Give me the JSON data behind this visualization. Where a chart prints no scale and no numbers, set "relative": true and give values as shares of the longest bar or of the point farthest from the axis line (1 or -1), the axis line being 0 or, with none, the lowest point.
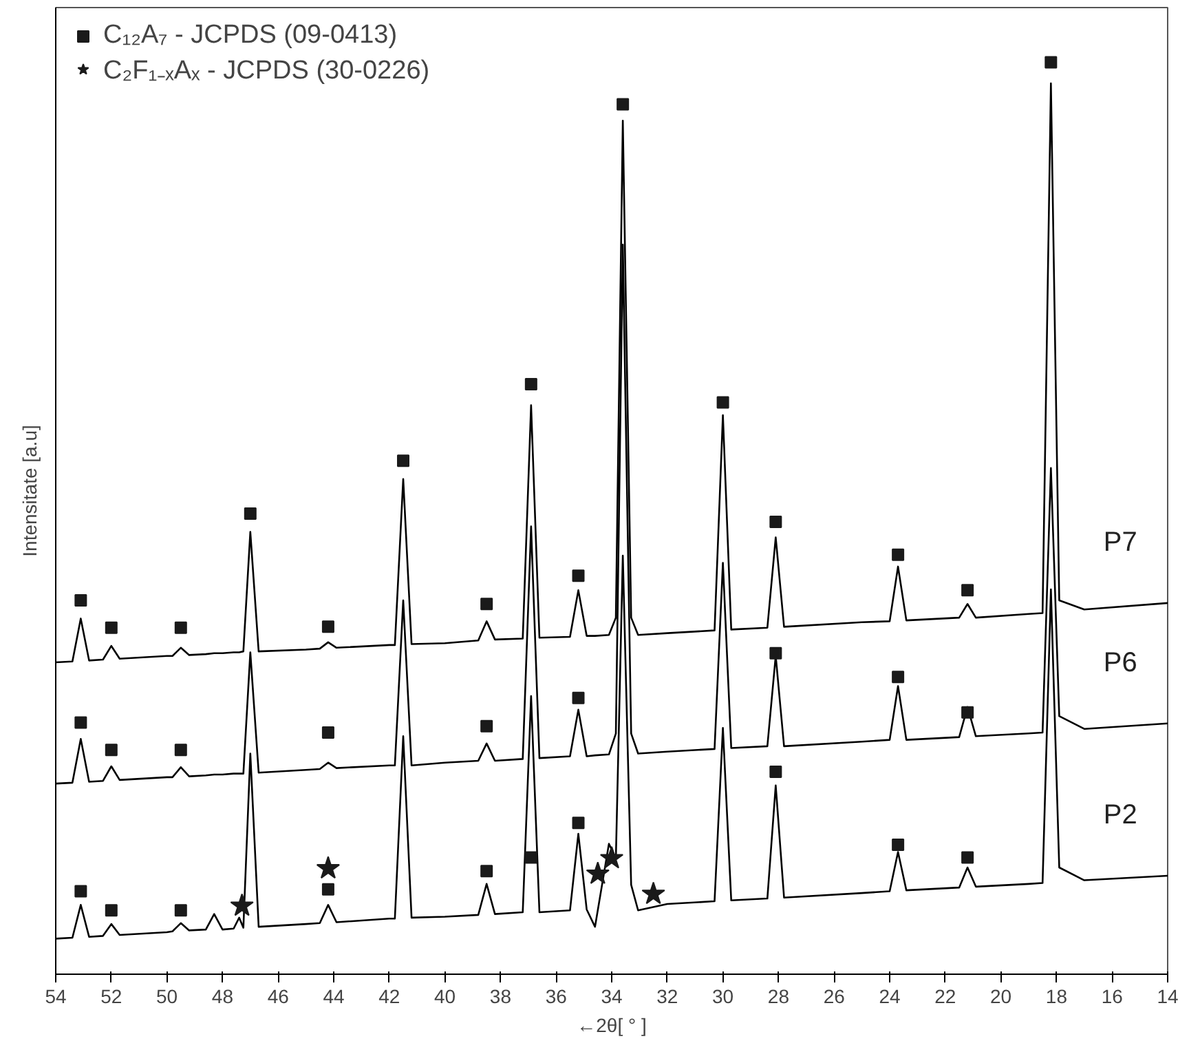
{
  "chart_data": {
    "type": "line",
    "relative": true,
    "xlabel": "←2θ[ ° ]",
    "ylabel": "Intensitate [a.u]",
    "xlim": [
      54,
      14
    ],
    "xticks": [
      54,
      52,
      50,
      48,
      46,
      44,
      42,
      40,
      38,
      36,
      34,
      32,
      30,
      28,
      26,
      24,
      22,
      20,
      18,
      16,
      14
    ],
    "grid": false,
    "legend": "top left",
    "marker": "none",
    "line_style": "solid",
    "x": [
      54,
      53.4,
      53.1,
      52.8,
      52.3,
      52.0,
      51.7,
      50,
      49.8,
      49.5,
      49.2,
      48.6,
      48.3,
      48.0,
      47.6,
      47.4,
      47.25,
      47.0,
      46.7,
      45,
      44.5,
      44.2,
      43.9,
      42,
      41.8,
      41.5,
      41.2,
      40,
      38.8,
      38.5,
      38.2,
      37.2,
      36.9,
      36.6,
      35.5,
      35.2,
      34.9,
      34.6,
      34.1,
      33.85,
      33.6,
      33.3,
      33.05,
      32,
      30.3,
      30.0,
      29.7,
      28.4,
      28.1,
      27.8,
      25,
      24.0,
      23.7,
      23.4,
      21.5,
      21.2,
      20.9,
      19,
      18.5,
      18.2,
      17.9,
      17,
      14
    ],
    "series": [
      {
        "name": "P7",
        "color": "#000000",
        "values": [
          0.342,
          0.343,
          0.39,
          0.344,
          0.345,
          0.36,
          0.346,
          0.349,
          0.349,
          0.358,
          0.35,
          0.351,
          0.352,
          0.352,
          0.353,
          0.353,
          0.354,
          0.485,
          0.354,
          0.356,
          0.357,
          0.364,
          0.358,
          0.361,
          0.361,
          0.543,
          0.362,
          0.363,
          0.366,
          0.387,
          0.367,
          0.368,
          0.624,
          0.369,
          0.37,
          0.421,
          0.371,
          0.371,
          0.372,
          0.391,
          0.936,
          0.391,
          0.372,
          0.374,
          0.377,
          0.613,
          0.378,
          0.38,
          0.479,
          0.381,
          0.386,
          0.387,
          0.447,
          0.388,
          0.391,
          0.406,
          0.391,
          0.395,
          0.396,
          0.977,
          0.41,
          0.4,
          0.407
        ]
      },
      {
        "name": "P6",
        "color": "#000000",
        "values": [
          0.209,
          0.21,
          0.258,
          0.211,
          0.212,
          0.228,
          0.213,
          0.216,
          0.216,
          0.227,
          0.217,
          0.218,
          0.219,
          0.219,
          0.22,
          0.22,
          0.22,
          0.353,
          0.221,
          0.224,
          0.225,
          0.232,
          0.226,
          0.229,
          0.229,
          0.41,
          0.229,
          0.232,
          0.234,
          0.253,
          0.234,
          0.236,
          0.491,
          0.237,
          0.239,
          0.29,
          0.239,
          0.24,
          0.241,
          0.264,
          0.8,
          0.264,
          0.242,
          0.244,
          0.247,
          0.451,
          0.248,
          0.25,
          0.349,
          0.25,
          0.255,
          0.257,
          0.316,
          0.257,
          0.26,
          0.293,
          0.261,
          0.264,
          0.265,
          0.555,
          0.283,
          0.269,
          0.275
        ]
      },
      {
        "name": "P2",
        "color": "#000000",
        "values": [
          0.039,
          0.04,
          0.076,
          0.041,
          0.042,
          0.055,
          0.043,
          0.046,
          0.047,
          0.056,
          0.048,
          0.049,
          0.066,
          0.049,
          0.05,
          0.062,
          0.051,
          0.242,
          0.052,
          0.055,
          0.056,
          0.076,
          0.057,
          0.061,
          0.061,
          0.261,
          0.062,
          0.063,
          0.065,
          0.099,
          0.066,
          0.068,
          0.305,
          0.068,
          0.07,
          0.154,
          0.071,
          0.052,
          0.143,
          0.127,
          0.459,
          0.098,
          0.07,
          0.077,
          0.08,
          0.27,
          0.081,
          0.083,
          0.207,
          0.084,
          0.089,
          0.091,
          0.134,
          0.092,
          0.095,
          0.117,
          0.096,
          0.099,
          0.1,
          0.422,
          0.117,
          0.103,
          0.108
        ]
      },
      {
        "name": "C₁₂A₇ - JCPDS (09-0413)",
        "type": "scatter",
        "marker": "square",
        "color": "#1a1a1a",
        "x": [
          53.1,
          52.0,
          49.5,
          47.0,
          44.2,
          41.5,
          38.5,
          36.9,
          35.2,
          33.6,
          30.0,
          28.1,
          23.7,
          21.2,
          18.2,
          53.1,
          52.0,
          49.5,
          44.2,
          38.5,
          35.2,
          28.1,
          23.7,
          21.2,
          53.1,
          52.0,
          49.5,
          44.2,
          38.5,
          36.9,
          35.2,
          28.1,
          23.7,
          21.2
        ],
        "values": [
          0.41,
          0.38,
          0.38,
          0.505,
          0.381,
          0.563,
          0.406,
          0.647,
          0.437,
          0.954,
          0.627,
          0.496,
          0.46,
          0.421,
          1.0,
          0.276,
          0.246,
          0.246,
          0.265,
          0.272,
          0.303,
          0.352,
          0.326,
          0.287,
          0.091,
          0.07,
          0.07,
          0.093,
          0.113,
          0.128,
          0.166,
          0.222,
          0.142,
          0.128
        ]
      },
      {
        "name": "C₂F₁₋ₓAₓ - JCPDS (30-0226)",
        "type": "scatter",
        "marker": "star",
        "color": "#1a1a1a",
        "x": [
          47.3,
          44.2,
          34.5,
          34.0,
          32.5
        ],
        "values": [
          0.075,
          0.116,
          0.11,
          0.127,
          0.088
        ]
      }
    ]
  }
}
